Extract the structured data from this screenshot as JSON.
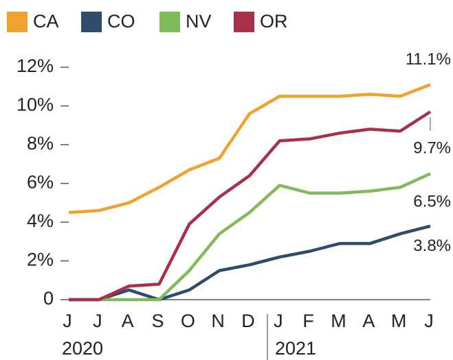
{
  "chart_data": {
    "type": "line",
    "categories": [
      "J",
      "J",
      "A",
      "S",
      "O",
      "N",
      "D",
      "J",
      "F",
      "M",
      "A",
      "M",
      "J"
    ],
    "years": [
      "2020",
      "2021"
    ],
    "series": [
      {
        "name": "CA",
        "color": "#f0a22e",
        "values": [
          4.5,
          4.6,
          5.0,
          5.8,
          6.7,
          7.3,
          9.6,
          10.5,
          10.5,
          10.5,
          10.6,
          10.5,
          11.1
        ],
        "value_labels": [
          null,
          null,
          null,
          null,
          null,
          null,
          null,
          null,
          null,
          null,
          null,
          null,
          "11.1%"
        ]
      },
      {
        "name": "CO",
        "color": "#2e4b6b",
        "values": [
          0,
          0,
          0.5,
          0,
          0.5,
          1.5,
          1.8,
          2.2,
          2.5,
          2.9,
          2.9,
          3.4,
          3.8
        ],
        "value_labels": [
          null,
          null,
          null,
          null,
          null,
          null,
          null,
          null,
          null,
          null,
          null,
          null,
          "3.8%"
        ]
      },
      {
        "name": "NV",
        "color": "#80ba5a",
        "values": [
          0,
          0,
          0,
          0,
          1.5,
          3.4,
          4.5,
          5.9,
          5.5,
          5.5,
          5.6,
          5.8,
          6.5
        ],
        "value_labels": [
          null,
          null,
          null,
          null,
          null,
          null,
          null,
          null,
          null,
          null,
          null,
          null,
          "6.5%"
        ]
      },
      {
        "name": "OR",
        "color": "#a8304b",
        "values": [
          0,
          0,
          0.7,
          0.8,
          3.9,
          5.3,
          6.4,
          8.2,
          8.3,
          8.6,
          8.8,
          8.7,
          9.7
        ],
        "value_labels": [
          null,
          null,
          null,
          null,
          null,
          null,
          null,
          null,
          null,
          null,
          null,
          null,
          "9.7%"
        ]
      }
    ],
    "ylim": [
      0,
      12
    ],
    "yticks": [
      0,
      {
        "value": 2,
        "label": "2%"
      },
      {
        "value": 4,
        "label": "4%"
      },
      {
        "value": 6,
        "label": "6%"
      },
      {
        "value": 8,
        "label": "8%"
      },
      {
        "value": 10,
        "label": "10%"
      },
      {
        "value": 12,
        "label": "12%"
      }
    ],
    "grid": false
  }
}
